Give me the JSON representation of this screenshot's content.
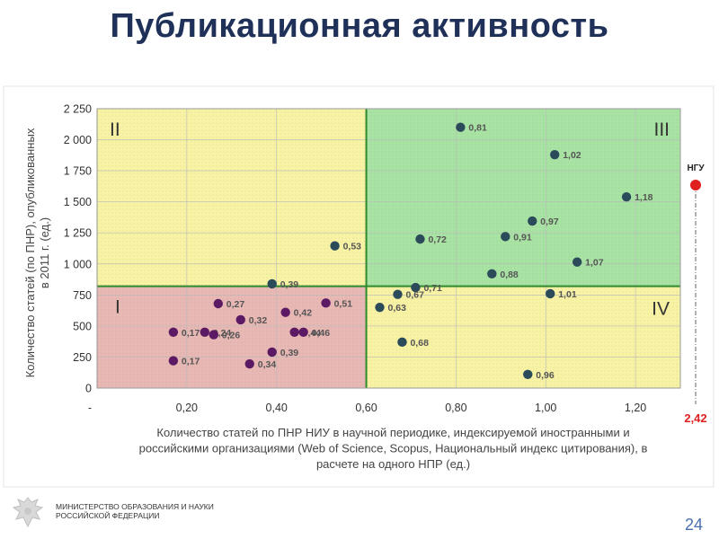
{
  "slide": {
    "title": "Публикационная активность",
    "ministry_line1": "МИНИСТЕРСТВО ОБРАЗОВАНИЯ И НАУКИ",
    "ministry_line2": "РОССИЙСКОЙ ФЕДЕРАЦИИ",
    "page_number": "24"
  },
  "colors": {
    "title": "#1f3158",
    "quadrant_I": "#e8b8b4",
    "quadrant_II": "#f7f2a4",
    "quadrant_III": "#a9e3a4",
    "quadrant_IV": "#f7f2a4",
    "divider": "#2e8b2e",
    "point_low": "#5b1a63",
    "point_high": "#2b4b5a",
    "ngu": "#e02020"
  },
  "chart_data": {
    "type": "scatter",
    "ylabel": "Количество статей (по ПНР), опубликованных в 2011 г. (ед.)",
    "xlabel": "Количество статей по ПНР НИУ в научной периодике, индексируемой иностранными и российскими организациями (Web of Science, Scopus, Национальный индекс цитирования), в расчете на одного НПР (ед.)",
    "xlim": [
      0,
      1.3
    ],
    "ylim": [
      0,
      2250
    ],
    "x_ticks": [
      {
        "value": 0,
        "label": "-"
      },
      {
        "value": 0.2,
        "label": "0,20"
      },
      {
        "value": 0.4,
        "label": "0,40"
      },
      {
        "value": 0.6,
        "label": "0,60"
      },
      {
        "value": 0.8,
        "label": "0,80"
      },
      {
        "value": 1.0,
        "label": "1,00"
      },
      {
        "value": 1.2,
        "label": "1,20"
      }
    ],
    "y_ticks": [
      {
        "value": 0,
        "label": "0"
      },
      {
        "value": 250,
        "label": "250"
      },
      {
        "value": 500,
        "label": "500"
      },
      {
        "value": 750,
        "label": "750"
      },
      {
        "value": 1000,
        "label": "1 000"
      },
      {
        "value": 1250,
        "label": "1 250"
      },
      {
        "value": 1500,
        "label": "1 500"
      },
      {
        "value": 1750,
        "label": "1 750"
      },
      {
        "value": 2000,
        "label": "2 000"
      },
      {
        "value": 2250,
        "label": "2 250"
      }
    ],
    "divider_x": 0.6,
    "divider_y": 820,
    "quadrants": [
      {
        "label": "I",
        "region": "bottom-left"
      },
      {
        "label": "II",
        "region": "top-left"
      },
      {
        "label": "III",
        "region": "top-right"
      },
      {
        "label": "IV",
        "region": "bottom-right"
      }
    ],
    "points": [
      {
        "x": 0.81,
        "y": 2100,
        "label": "0,81"
      },
      {
        "x": 1.02,
        "y": 1880,
        "label": "1,02"
      },
      {
        "x": 1.18,
        "y": 1540,
        "label": "1,18"
      },
      {
        "x": 0.97,
        "y": 1345,
        "label": "0,97"
      },
      {
        "x": 0.91,
        "y": 1220,
        "label": "0,91"
      },
      {
        "x": 0.72,
        "y": 1200,
        "label": "0,72"
      },
      {
        "x": 0.53,
        "y": 1145,
        "label": "0,53"
      },
      {
        "x": 1.07,
        "y": 1015,
        "label": "1,07"
      },
      {
        "x": 0.88,
        "y": 920,
        "label": "0,88"
      },
      {
        "x": 0.39,
        "y": 840,
        "label": "0,39"
      },
      {
        "x": 0.71,
        "y": 810,
        "label": "0,71"
      },
      {
        "x": 0.67,
        "y": 755,
        "label": "0,67"
      },
      {
        "x": 1.01,
        "y": 760,
        "label": "1,01"
      },
      {
        "x": 0.27,
        "y": 680,
        "label": "0,27"
      },
      {
        "x": 0.51,
        "y": 685,
        "label": "0,51"
      },
      {
        "x": 0.63,
        "y": 650,
        "label": "0,63"
      },
      {
        "x": 0.42,
        "y": 610,
        "label": "0,42"
      },
      {
        "x": 0.32,
        "y": 550,
        "label": "0,32"
      },
      {
        "x": 0.44,
        "y": 450,
        "label": "0,44"
      },
      {
        "x": 0.46,
        "y": 450,
        "label": "0,46"
      },
      {
        "x": 0.17,
        "y": 450,
        "label": "0,17"
      },
      {
        "x": 0.24,
        "y": 450,
        "label": "0,24"
      },
      {
        "x": 0.26,
        "y": 430,
        "label": "0,26"
      },
      {
        "x": 0.68,
        "y": 370,
        "label": "0,68"
      },
      {
        "x": 0.39,
        "y": 290,
        "label": "0,39"
      },
      {
        "x": 0.17,
        "y": 220,
        "label": "0,17"
      },
      {
        "x": 0.34,
        "y": 195,
        "label": "0,34"
      },
      {
        "x": 0.96,
        "y": 110,
        "label": "0,96"
      }
    ],
    "outlier": {
      "name": "НГУ",
      "value_label": "2,42",
      "x": 2.42
    }
  }
}
